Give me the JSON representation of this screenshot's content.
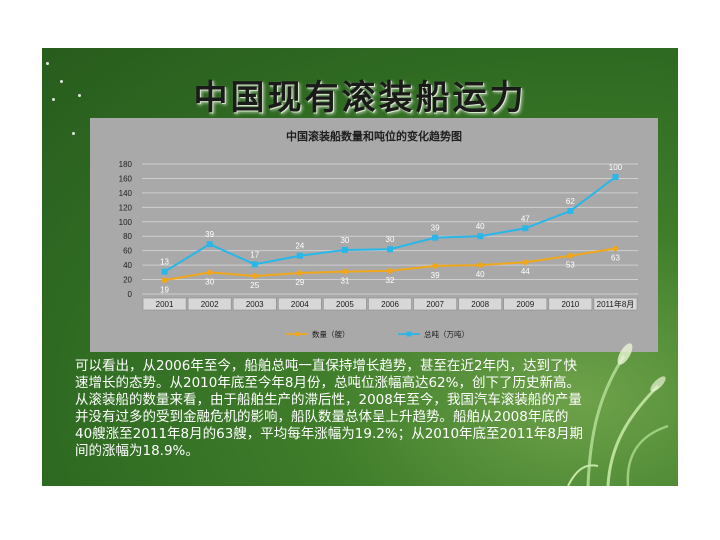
{
  "slide": {
    "title": "中国现有滚装船运力",
    "caption": "可以看出，从2006年至今，船舶总吨一直保持增长趋势，甚至在近2年内，达到了快速增长的态势。从2010年底至今年8月份，总吨位涨幅高达62%，创下了历史新高。从滚装船的数量来看，由于船舶生产的滞后性，2008年至今，我国汽车滚装船的产量并没有过多的受到金融危机的影响，船队数量总体呈上升趋势。船舶从2008年底的40艘涨至2011年8月的63艘，平均每年涨幅为19.2%；从2010年底至2011年8月期间的涨幅为18.9%。"
  },
  "colors": {
    "slide_bg": "#3f7d2a",
    "chart_bg": "#a9a9a9",
    "series_count": "#f0a81a",
    "series_tonnage": "#29b6e8"
  },
  "chart_data": {
    "type": "line",
    "title": "中国滚装船数量和吨位的变化趋势图",
    "categories": [
      "2001",
      "2002",
      "2003",
      "2004",
      "2005",
      "2006",
      "2007",
      "2008",
      "2009",
      "2010",
      "2011年8月"
    ],
    "ylim": [
      0,
      180
    ],
    "yticks": [
      0,
      20,
      40,
      60,
      80,
      100,
      120,
      140,
      160,
      180
    ],
    "grid": true,
    "legend": "bottom",
    "series": [
      {
        "name": "数量（艘）",
        "values": [
          19,
          30,
          25,
          29,
          31,
          32,
          39,
          40,
          44,
          53,
          63
        ],
        "labels": [
          "19",
          "30",
          "25",
          "29",
          "31",
          "32",
          "39",
          "40",
          "44",
          "53",
          "63"
        ]
      },
      {
        "name": "总吨（万吨）",
        "values": [
          31,
          69,
          41,
          53,
          61,
          62,
          78,
          80,
          91,
          115,
          162
        ],
        "labels": [
          "13",
          "39",
          "17",
          "24",
          "30",
          "30",
          "39",
          "40",
          "47",
          "62",
          "100"
        ]
      }
    ]
  }
}
